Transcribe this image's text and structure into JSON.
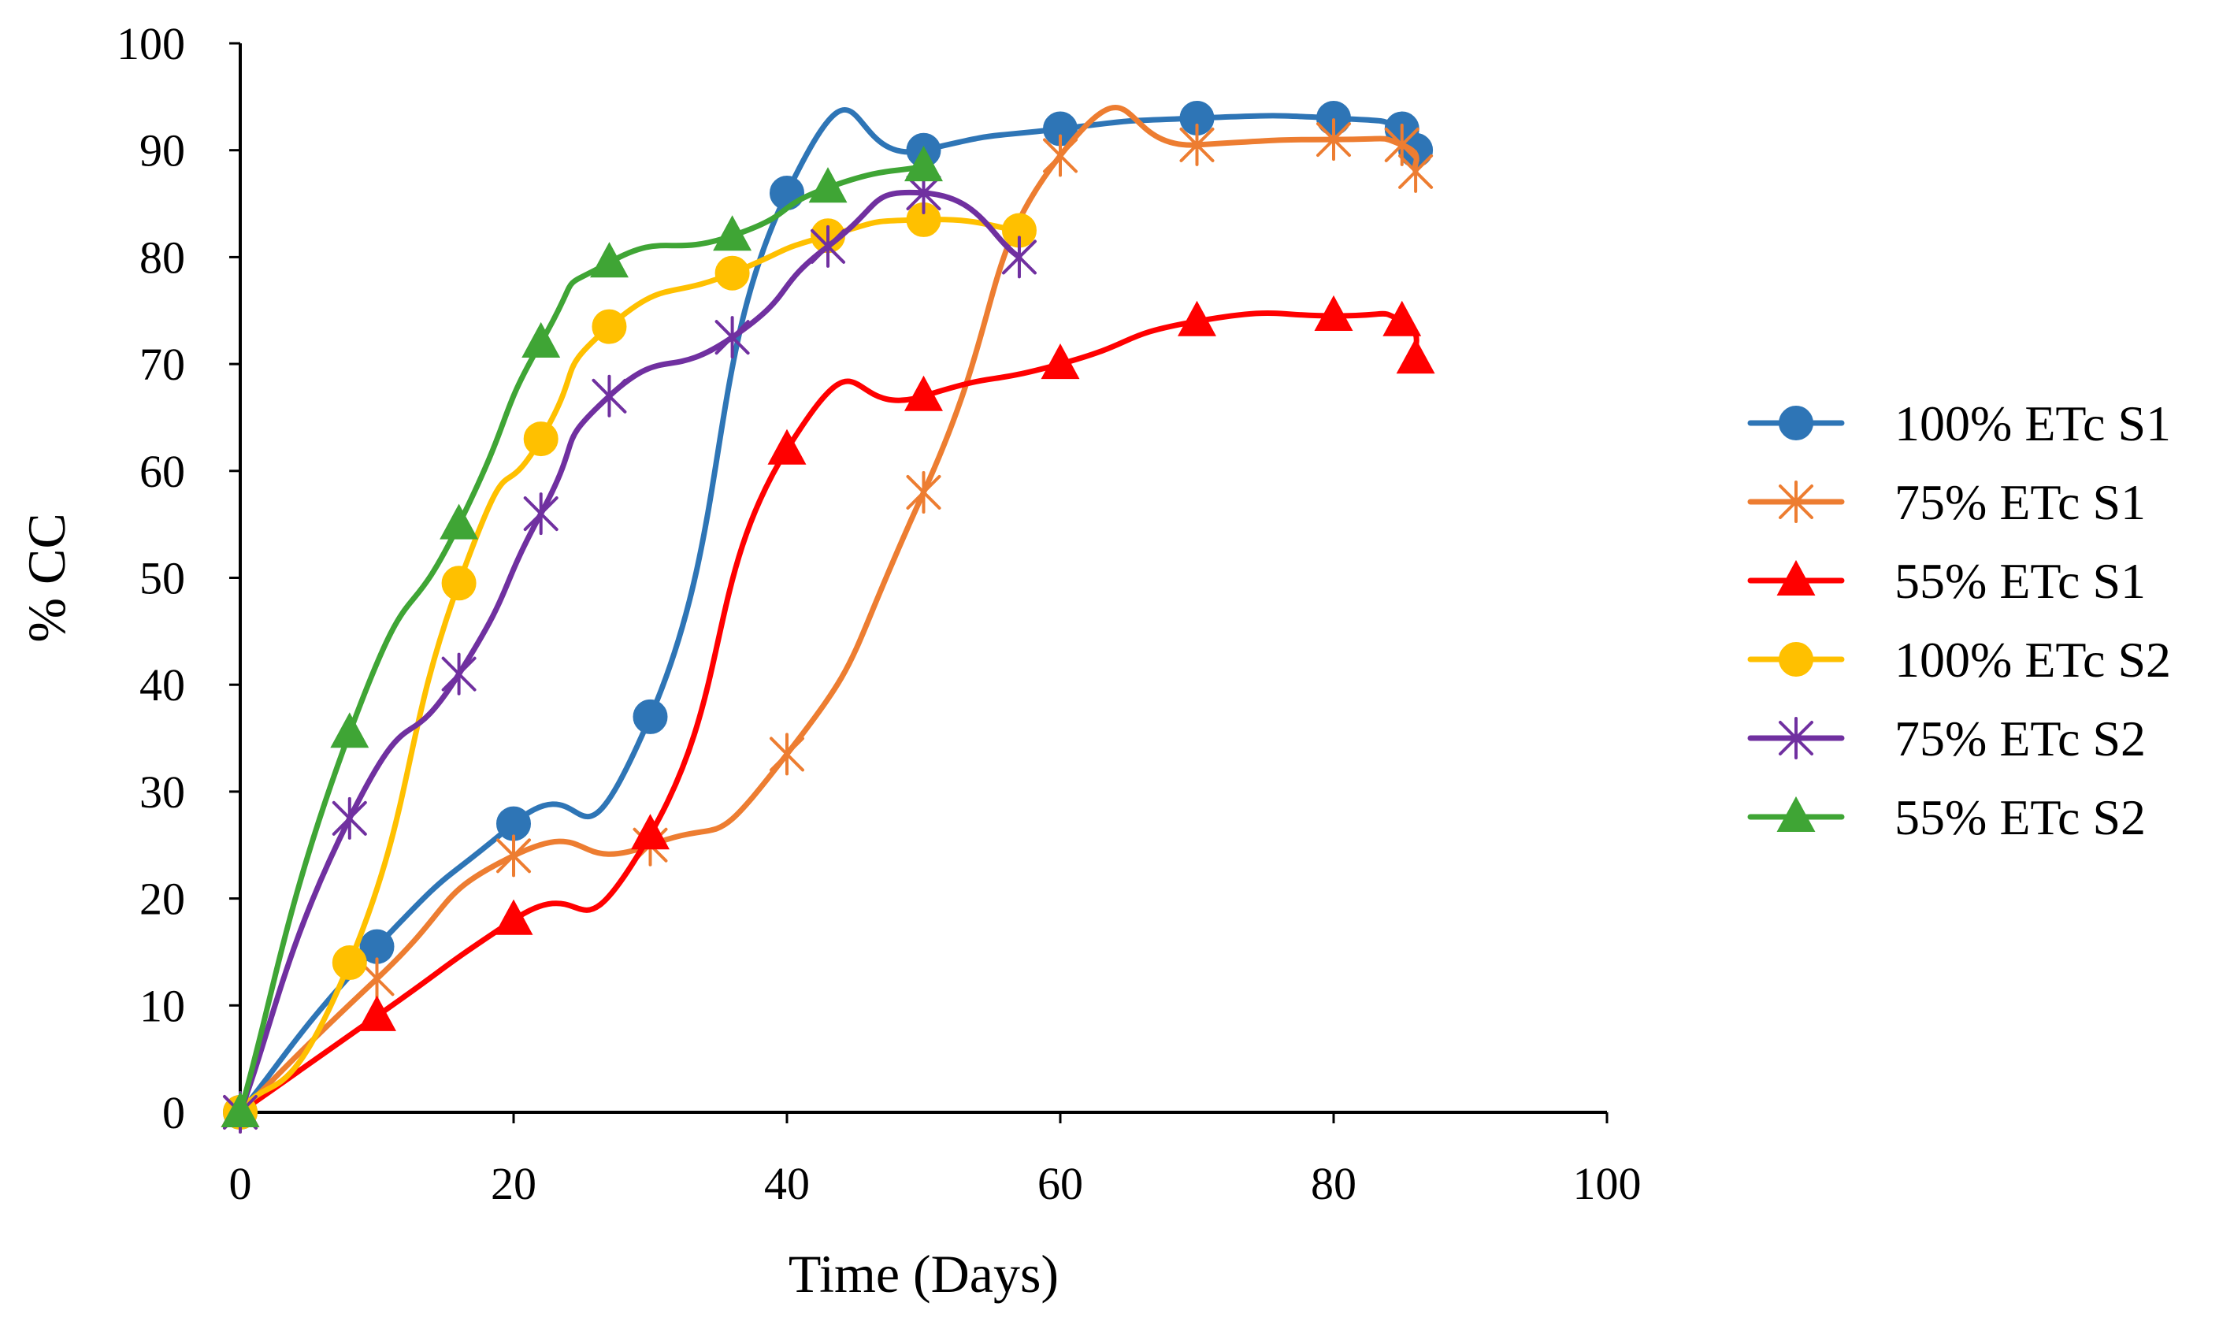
{
  "chart_data": {
    "type": "line",
    "title": "",
    "xlabel": "Time (Days)",
    "ylabel": "% CC",
    "xlim": [
      0,
      100
    ],
    "ylim": [
      0,
      100
    ],
    "xticks": [
      0,
      20,
      40,
      60,
      80,
      100
    ],
    "yticks": [
      0,
      10,
      20,
      30,
      40,
      50,
      60,
      70,
      80,
      90,
      100
    ],
    "grid": false,
    "legend_position": "right",
    "series": [
      {
        "name": "100% ETc S1",
        "color": "#2E75B6",
        "marker": "circle",
        "x": [
          0,
          10,
          20,
          30,
          40,
          50,
          60,
          70,
          80,
          85,
          86
        ],
        "y": [
          0,
          15.5,
          27,
          37,
          86,
          90,
          92,
          93,
          93,
          92,
          90
        ]
      },
      {
        "name": "75% ETc S1",
        "color": "#ED7D31",
        "marker": "asterisk",
        "x": [
          0,
          10,
          20,
          30,
          40,
          50,
          60,
          70,
          80,
          85,
          86
        ],
        "y": [
          0,
          12.5,
          24,
          25,
          33.5,
          58,
          89.5,
          90.5,
          91,
          90.5,
          88
        ]
      },
      {
        "name": "55% ETc S1",
        "color": "#FF0000",
        "marker": "triangle",
        "x": [
          0,
          10,
          20,
          30,
          40,
          50,
          60,
          70,
          80,
          85,
          86
        ],
        "y": [
          0,
          9,
          18,
          26,
          62,
          67,
          70,
          74,
          74.5,
          74,
          70.5
        ]
      },
      {
        "name": "100% ETc S2",
        "color": "#FFC000",
        "marker": "circle",
        "x": [
          0,
          8,
          16,
          22,
          27,
          36,
          43,
          50,
          57
        ],
        "y": [
          0,
          14,
          49.5,
          63,
          73.5,
          78.5,
          82,
          83.5,
          82.5
        ]
      },
      {
        "name": "75% ETc S2",
        "color": "#7030A0",
        "marker": "asterisk",
        "x": [
          0,
          8,
          16,
          22,
          27,
          36,
          43,
          50,
          57
        ],
        "y": [
          0,
          27.5,
          41,
          56,
          67,
          72.5,
          81,
          86,
          80
        ]
      },
      {
        "name": "55% ETc S2",
        "color": "#3FA535",
        "marker": "triangle",
        "x": [
          0,
          8,
          16,
          22,
          27,
          36,
          43,
          50
        ],
        "y": [
          0,
          35.5,
          55,
          72,
          79.5,
          82,
          86.5,
          88.5
        ]
      }
    ]
  }
}
